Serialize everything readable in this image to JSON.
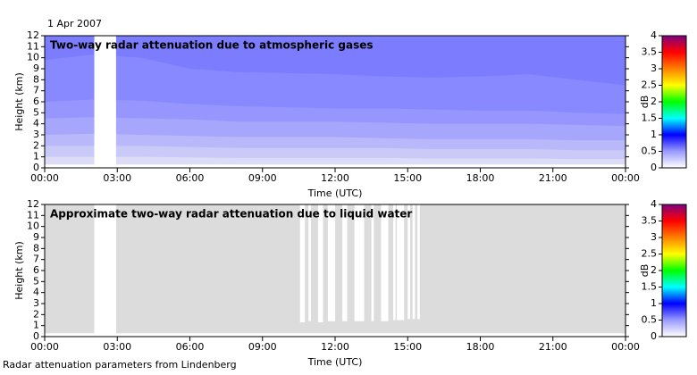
{
  "date": "1 Apr 2007",
  "footer": "Radar attenuation parameters from Lindenberg",
  "chart_data": [
    {
      "type": "contour",
      "title": "Two-way radar attenuation due to atmospheric gases",
      "xlabel": "Time (UTC)",
      "ylabel": "Height (km)",
      "xlim": [
        0,
        24
      ],
      "ylim": [
        0,
        12
      ],
      "xticks": [
        {
          "value": 0,
          "label": "00:00"
        },
        {
          "value": 3,
          "label": "03:00"
        },
        {
          "value": 6,
          "label": "06:00"
        },
        {
          "value": 9,
          "label": "09:00"
        },
        {
          "value": 12,
          "label": "12:00"
        },
        {
          "value": 15,
          "label": "15:00"
        },
        {
          "value": 18,
          "label": "18:00"
        },
        {
          "value": 21,
          "label": "21:00"
        },
        {
          "value": 24,
          "label": "00:00"
        }
      ],
      "yticks": [
        0,
        1,
        2,
        3,
        4,
        5,
        6,
        7,
        8,
        9,
        10,
        11,
        12
      ],
      "x": [
        0,
        2,
        4,
        6,
        8,
        10,
        12,
        14,
        16,
        18,
        20,
        22,
        24
      ],
      "bands": [
        {
          "color": "#dcdcf6",
          "lower": [
            0.3,
            0.3,
            0.3,
            0.3,
            0.3,
            0.3,
            0.3,
            0.3,
            0.3,
            0.3,
            0.3,
            0.3,
            0.3
          ]
        },
        {
          "color": "#cacaf8",
          "lower": [
            1.0,
            1.0,
            1.0,
            0.95,
            0.9,
            0.9,
            0.9,
            0.9,
            0.85,
            0.85,
            0.85,
            0.8,
            0.8
          ]
        },
        {
          "color": "#b8b8fa",
          "lower": [
            2.0,
            2.0,
            2.0,
            1.9,
            1.8,
            1.8,
            1.8,
            1.8,
            1.7,
            1.7,
            1.7,
            1.6,
            1.6
          ]
        },
        {
          "color": "#a6a6fc",
          "lower": [
            3.0,
            3.1,
            3.0,
            2.9,
            2.8,
            2.8,
            2.8,
            2.7,
            2.6,
            2.6,
            2.6,
            2.5,
            2.5
          ]
        },
        {
          "color": "#9696fe",
          "lower": [
            4.5,
            4.6,
            4.5,
            4.4,
            4.2,
            4.2,
            4.2,
            4.1,
            4.0,
            4.0,
            4.0,
            3.9,
            3.8
          ]
        },
        {
          "color": "#8888ff",
          "lower": [
            6.0,
            6.2,
            6.1,
            5.8,
            5.6,
            5.5,
            5.4,
            5.4,
            5.3,
            5.2,
            5.2,
            5.0,
            4.9
          ]
        },
        {
          "color": "#7c7cff",
          "lower": [
            9.8,
            10.3,
            10.0,
            9.0,
            8.7,
            8.6,
            8.5,
            8.3,
            8.2,
            8.3,
            8.5,
            8.0,
            7.5
          ]
        }
      ],
      "gaps": [
        {
          "x": [
            2.05,
            2.95
          ],
          "bottom": 0
        }
      ],
      "colorbar": {
        "label": "dB",
        "lim": [
          0,
          4
        ],
        "ticks": [
          0,
          0.5,
          1,
          1.5,
          2,
          2.5,
          3,
          3.5,
          4
        ],
        "colors": [
          "#ffffff",
          "#9a9aff",
          "#0000ff",
          "#00ffff",
          "#00ff00",
          "#ffff00",
          "#ff8000",
          "#ff0000",
          "#800080"
        ]
      }
    },
    {
      "type": "contour",
      "title": "Approximate two-way radar attenuation due to liquid water",
      "xlabel": "Time (UTC)",
      "ylabel": "Height (km)",
      "xlim": [
        0,
        24
      ],
      "ylim": [
        0,
        12
      ],
      "xticks": [
        {
          "value": 0,
          "label": "00:00"
        },
        {
          "value": 3,
          "label": "03:00"
        },
        {
          "value": 6,
          "label": "06:00"
        },
        {
          "value": 9,
          "label": "09:00"
        },
        {
          "value": 12,
          "label": "12:00"
        },
        {
          "value": 15,
          "label": "15:00"
        },
        {
          "value": 18,
          "label": "18:00"
        },
        {
          "value": 21,
          "label": "21:00"
        },
        {
          "value": 24,
          "label": "00:00"
        }
      ],
      "yticks": [
        0,
        1,
        2,
        3,
        4,
        5,
        6,
        7,
        8,
        9,
        10,
        11,
        12
      ],
      "x": [
        0,
        24
      ],
      "bands": [
        {
          "color": "#dcdcdc",
          "lower": [
            0.3,
            0.3
          ]
        }
      ],
      "gaps": [
        {
          "x": [
            2.05,
            2.95
          ],
          "bottom": 0
        },
        {
          "x": [
            10.55,
            10.75
          ],
          "bottom": 1.3
        },
        {
          "x": [
            10.9,
            11.0
          ],
          "bottom": 1.4
        },
        {
          "x": [
            11.3,
            11.5
          ],
          "bottom": 1.3
        },
        {
          "x": [
            11.7,
            12.0
          ],
          "bottom": 1.4
        },
        {
          "x": [
            12.3,
            12.5
          ],
          "bottom": 1.4
        },
        {
          "x": [
            12.8,
            13.2
          ],
          "bottom": 1.4
        },
        {
          "x": [
            13.5,
            13.6
          ],
          "bottom": 1.4
        },
        {
          "x": [
            13.9,
            14.2
          ],
          "bottom": 1.4
        },
        {
          "x": [
            14.4,
            14.5
          ],
          "bottom": 1.5
        },
        {
          "x": [
            14.55,
            14.85
          ],
          "bottom": 1.5
        },
        {
          "x": [
            15.0,
            15.1
          ],
          "bottom": 1.6
        },
        {
          "x": [
            15.2,
            15.3
          ],
          "bottom": 1.6
        },
        {
          "x": [
            15.4,
            15.5
          ],
          "bottom": 1.6
        }
      ],
      "colorbar": {
        "label": "dB",
        "lim": [
          0,
          4
        ],
        "ticks": [
          0,
          0.5,
          1,
          1.5,
          2,
          2.5,
          3,
          3.5,
          4
        ],
        "colors": [
          "#ffffff",
          "#9a9aff",
          "#0000ff",
          "#00ffff",
          "#00ff00",
          "#ffff00",
          "#ff8000",
          "#ff0000",
          "#800080"
        ]
      }
    }
  ]
}
